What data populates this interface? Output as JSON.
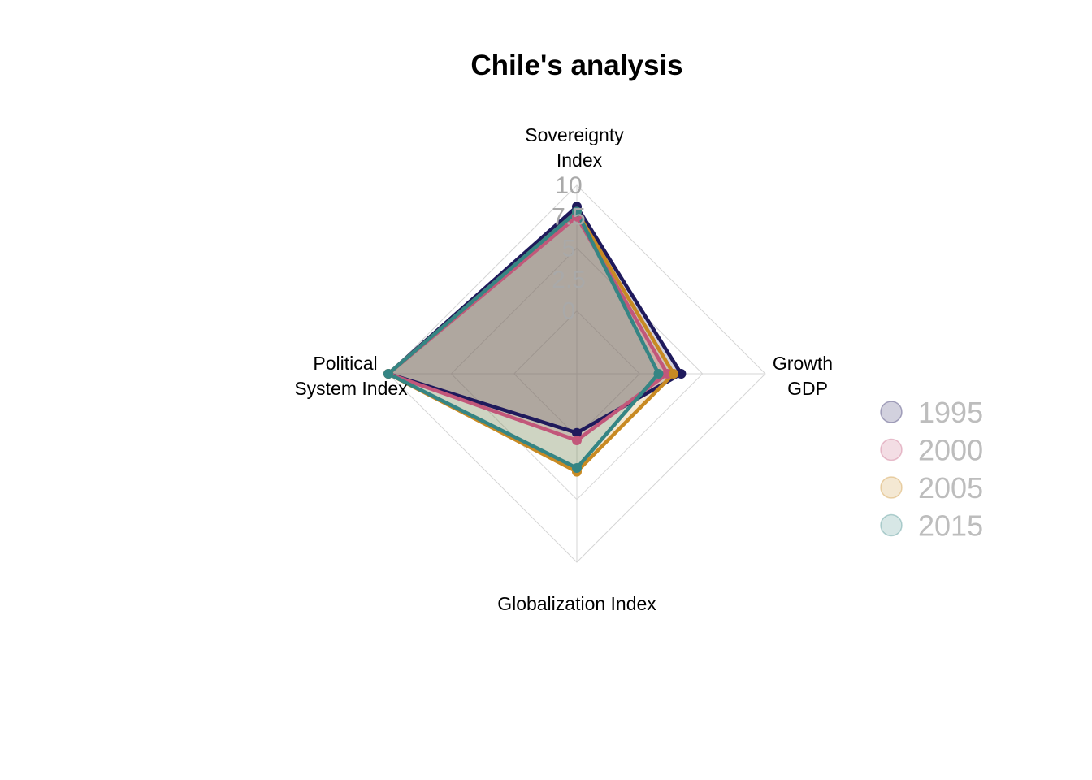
{
  "chart_data": {
    "type": "radar",
    "title": "Chile's analysis",
    "axes": [
      {
        "key": "sovereignty",
        "label_lines": [
          "Sovereignty",
          "Index"
        ]
      },
      {
        "key": "growth",
        "label_lines": [
          "Growth",
          "GDP"
        ]
      },
      {
        "key": "globalization",
        "label_lines": [
          "Globalization Index"
        ]
      },
      {
        "key": "political",
        "label_lines": [
          "Political",
          "System Index"
        ]
      }
    ],
    "rlim": [
      -5,
      10
    ],
    "ticks": [
      "0",
      "2.5",
      "5",
      "7.5",
      "10"
    ],
    "tick_values": [
      0,
      2.5,
      5,
      7.5,
      10
    ],
    "legend_position": "right",
    "series": [
      {
        "name": "1995",
        "color": "#1f1a5c",
        "values": [
          8.3,
          3.3,
          -0.3,
          10
        ]
      },
      {
        "name": "2000",
        "color": "#c2577a",
        "values": [
          7.5,
          2.2,
          0.3,
          10
        ]
      },
      {
        "name": "2005",
        "color": "#c88a23",
        "values": [
          7.9,
          2.7,
          2.8,
          10
        ]
      },
      {
        "name": "2015",
        "color": "#358584",
        "values": [
          7.9,
          1.5,
          2.5,
          10
        ]
      }
    ]
  }
}
